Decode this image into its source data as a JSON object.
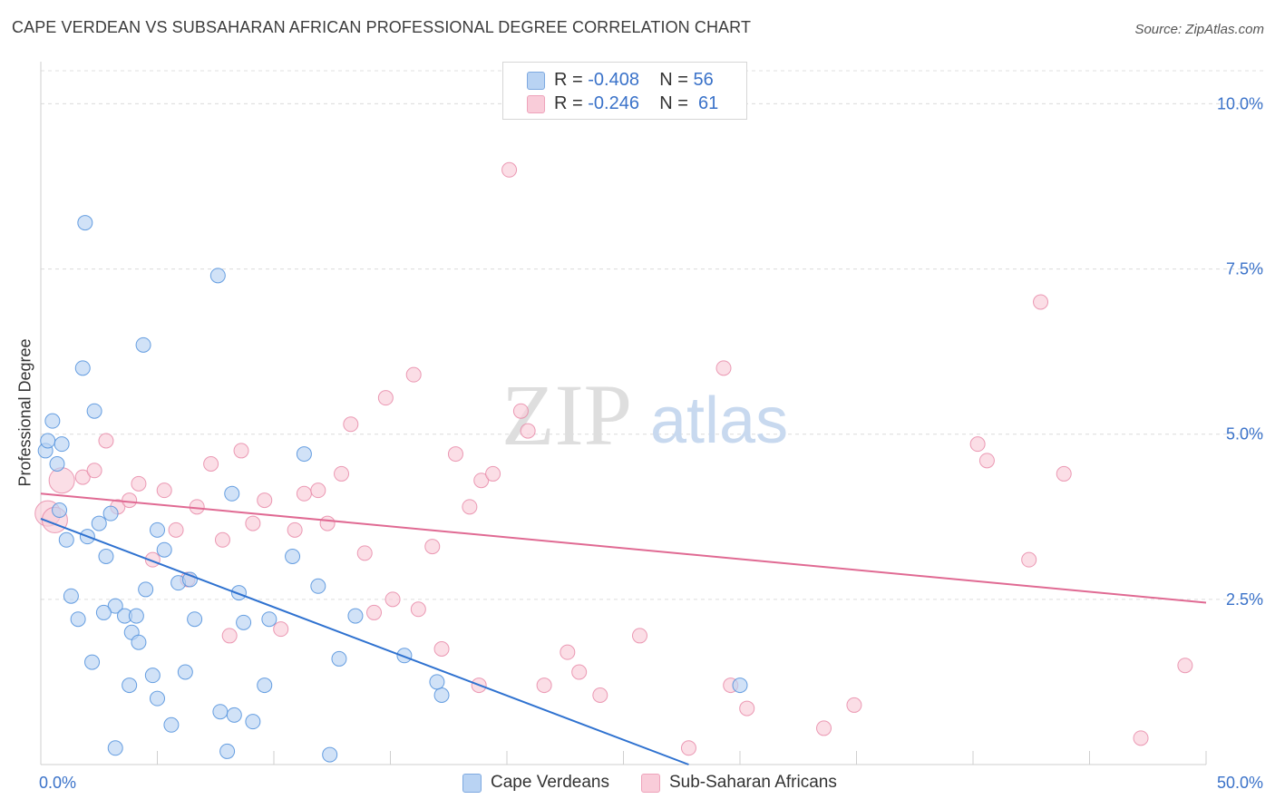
{
  "title": "CAPE VERDEAN VS SUBSAHARAN AFRICAN PROFESSIONAL DEGREE CORRELATION CHART",
  "source": "Source: ZipAtlas.com",
  "watermark": {
    "zip": "ZIP",
    "atlas": "atlas"
  },
  "legend": {
    "rows": [
      {
        "r_label": "R =",
        "r_value": "-0.408",
        "n_label": "N =",
        "n_value": "56",
        "color": "#a9c8f0"
      },
      {
        "r_label": "R =",
        "r_value": "-0.246",
        "n_label": "N =",
        "n_value": "61",
        "color": "#f7bfd0"
      }
    ]
  },
  "bottom_legend": [
    {
      "label": "Cape Verdeans",
      "color": "#b9d3f3"
    },
    {
      "label": "Sub-Saharan Africans",
      "color": "#f9ccd9"
    }
  ],
  "chart_data": {
    "type": "scatter",
    "title": "CAPE VERDEAN VS SUBSAHARAN AFRICAN PROFESSIONAL DEGREE CORRELATION CHART",
    "xlabel": "",
    "ylabel": "Professional Degree",
    "xlim": [
      0,
      50
    ],
    "ylim": [
      0,
      10.5
    ],
    "x_tick_labels": [
      "0.0%",
      "50.0%"
    ],
    "y_ticks": [
      2.5,
      5.0,
      7.5,
      10.0
    ],
    "y_tick_labels": [
      "2.5%",
      "5.0%",
      "7.5%",
      "10.0%"
    ],
    "grid": true,
    "legend_position": "top-center",
    "series": [
      {
        "name": "Cape Verdeans",
        "color": "#4f8fdc",
        "fill": "#b9d3f3",
        "trend": {
          "x": [
            0,
            27.8
          ],
          "y": [
            3.72,
            0.0
          ],
          "color": "#2f72d0"
        },
        "points": [
          [
            0.2,
            4.75
          ],
          [
            0.3,
            4.9
          ],
          [
            0.5,
            5.2
          ],
          [
            0.7,
            4.55
          ],
          [
            0.9,
            4.85
          ],
          [
            0.8,
            3.85
          ],
          [
            1.1,
            3.4
          ],
          [
            1.3,
            2.55
          ],
          [
            1.6,
            2.2
          ],
          [
            1.9,
            8.2
          ],
          [
            1.8,
            6.0
          ],
          [
            2.3,
            5.35
          ],
          [
            2.0,
            3.45
          ],
          [
            2.5,
            3.65
          ],
          [
            2.8,
            3.15
          ],
          [
            3.0,
            3.8
          ],
          [
            3.2,
            2.4
          ],
          [
            2.7,
            2.3
          ],
          [
            2.2,
            1.55
          ],
          [
            3.6,
            2.25
          ],
          [
            3.9,
            2.0
          ],
          [
            4.1,
            2.25
          ],
          [
            4.2,
            1.85
          ],
          [
            4.5,
            2.65
          ],
          [
            4.4,
            6.35
          ],
          [
            5.0,
            3.55
          ],
          [
            5.3,
            3.25
          ],
          [
            5.9,
            2.75
          ],
          [
            6.6,
            2.2
          ],
          [
            3.8,
            1.2
          ],
          [
            4.8,
            1.35
          ],
          [
            5.0,
            1.0
          ],
          [
            5.6,
            0.6
          ],
          [
            6.2,
            1.4
          ],
          [
            3.2,
            0.25
          ],
          [
            7.7,
            0.8
          ],
          [
            7.6,
            7.4
          ],
          [
            8.2,
            4.1
          ],
          [
            8.3,
            0.75
          ],
          [
            8.5,
            2.6
          ],
          [
            8.7,
            2.15
          ],
          [
            9.1,
            0.65
          ],
          [
            9.6,
            1.2
          ],
          [
            9.8,
            2.2
          ],
          [
            10.8,
            3.15
          ],
          [
            11.3,
            4.7
          ],
          [
            11.9,
            2.7
          ],
          [
            12.4,
            0.15
          ],
          [
            12.8,
            1.6
          ],
          [
            13.5,
            2.25
          ],
          [
            15.6,
            1.65
          ],
          [
            17.2,
            1.05
          ],
          [
            17.0,
            1.25
          ],
          [
            30.0,
            1.2
          ],
          [
            8.0,
            0.2
          ],
          [
            6.4,
            2.8
          ]
        ]
      },
      {
        "name": "Sub-Saharan Africans",
        "color": "#e88aa8",
        "fill": "#f9ccd9",
        "trend": {
          "x": [
            0,
            50
          ],
          "y": [
            4.1,
            2.45
          ],
          "color": "#e06a93"
        },
        "points": [
          [
            0.3,
            3.8
          ],
          [
            0.9,
            4.3
          ],
          [
            1.8,
            4.35
          ],
          [
            2.3,
            4.45
          ],
          [
            2.8,
            4.9
          ],
          [
            3.3,
            3.9
          ],
          [
            3.8,
            4.0
          ],
          [
            4.2,
            4.25
          ],
          [
            4.8,
            3.1
          ],
          [
            5.3,
            4.15
          ],
          [
            5.8,
            3.55
          ],
          [
            6.3,
            2.8
          ],
          [
            6.7,
            3.9
          ],
          [
            7.3,
            4.55
          ],
          [
            7.8,
            3.4
          ],
          [
            8.1,
            1.95
          ],
          [
            8.6,
            4.75
          ],
          [
            9.1,
            3.65
          ],
          [
            9.6,
            4.0
          ],
          [
            10.3,
            2.05
          ],
          [
            10.9,
            3.55
          ],
          [
            11.3,
            4.1
          ],
          [
            11.9,
            4.15
          ],
          [
            12.3,
            3.65
          ],
          [
            12.9,
            4.4
          ],
          [
            13.3,
            5.15
          ],
          [
            13.9,
            3.2
          ],
          [
            14.3,
            2.3
          ],
          [
            14.8,
            5.55
          ],
          [
            15.1,
            2.5
          ],
          [
            16.0,
            5.9
          ],
          [
            16.2,
            2.35
          ],
          [
            16.8,
            3.3
          ],
          [
            17.2,
            1.75
          ],
          [
            17.8,
            4.7
          ],
          [
            18.4,
            3.9
          ],
          [
            18.8,
            1.2
          ],
          [
            18.9,
            4.3
          ],
          [
            19.4,
            4.4
          ],
          [
            20.1,
            9.0
          ],
          [
            20.6,
            5.35
          ],
          [
            20.9,
            5.05
          ],
          [
            21.6,
            1.2
          ],
          [
            22.6,
            1.7
          ],
          [
            23.1,
            1.4
          ],
          [
            24.0,
            1.05
          ],
          [
            25.7,
            1.95
          ],
          [
            27.8,
            0.25
          ],
          [
            29.3,
            6.0
          ],
          [
            29.6,
            1.2
          ],
          [
            30.3,
            0.85
          ],
          [
            33.6,
            0.55
          ],
          [
            34.9,
            0.9
          ],
          [
            40.2,
            4.85
          ],
          [
            40.6,
            4.6
          ],
          [
            42.4,
            3.1
          ],
          [
            42.9,
            7.0
          ],
          [
            43.9,
            4.4
          ],
          [
            47.2,
            0.4
          ],
          [
            49.1,
            1.5
          ],
          [
            0.6,
            3.7
          ]
        ]
      }
    ]
  }
}
